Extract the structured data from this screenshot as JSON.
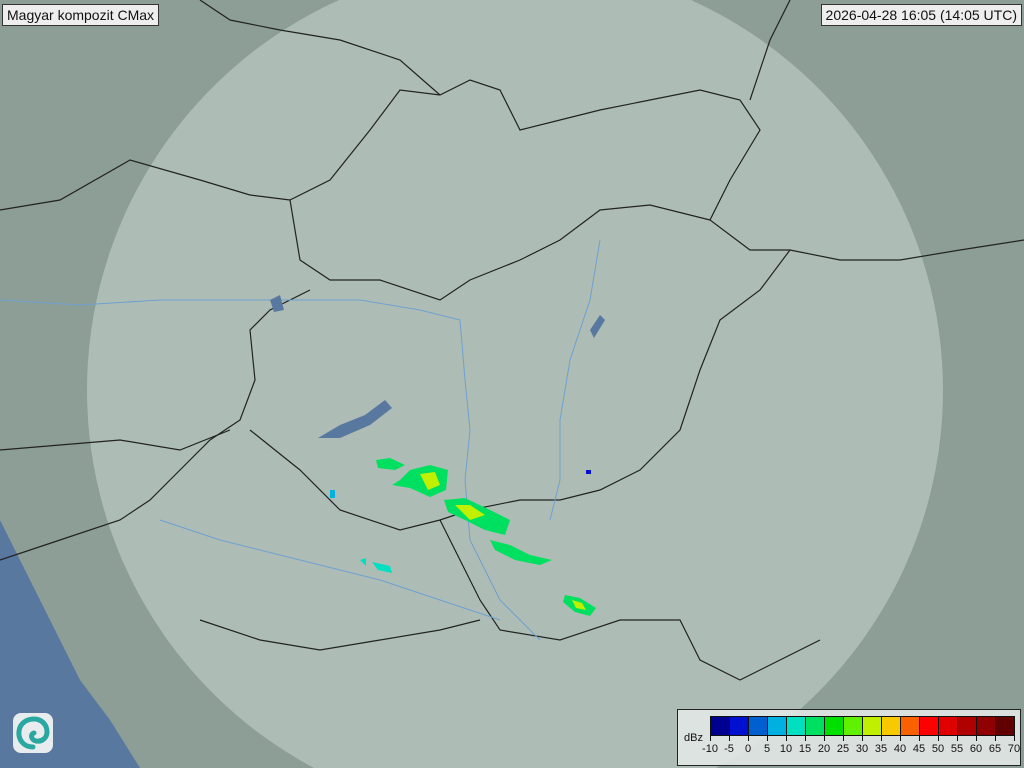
{
  "title": "Magyar kompozit  CMax",
  "timestamp": "2026-04-28 16:05 (14:05 UTC)",
  "logo_icon": "swirl-logo-icon",
  "colors": {
    "terrain": "#8c9e96",
    "radar_coverage": "#c8d8d2",
    "water": "#5878a0",
    "border": "#222222",
    "river": "#6ea0d0"
  },
  "legend": {
    "unit": "dBz",
    "ticks": [
      "-10",
      "-5",
      "0",
      "5",
      "10",
      "15",
      "20",
      "25",
      "30",
      "35",
      "40",
      "45",
      "50",
      "55",
      "60",
      "65",
      "70"
    ],
    "colors": [
      "#000090",
      "#0010d0",
      "#0060d0",
      "#00b0e0",
      "#00e0c0",
      "#00e060",
      "#00e000",
      "#60f000",
      "#c0f000",
      "#f8c800",
      "#f86000",
      "#ff0000",
      "#e00000",
      "#b00000",
      "#900000",
      "#600000"
    ]
  }
}
